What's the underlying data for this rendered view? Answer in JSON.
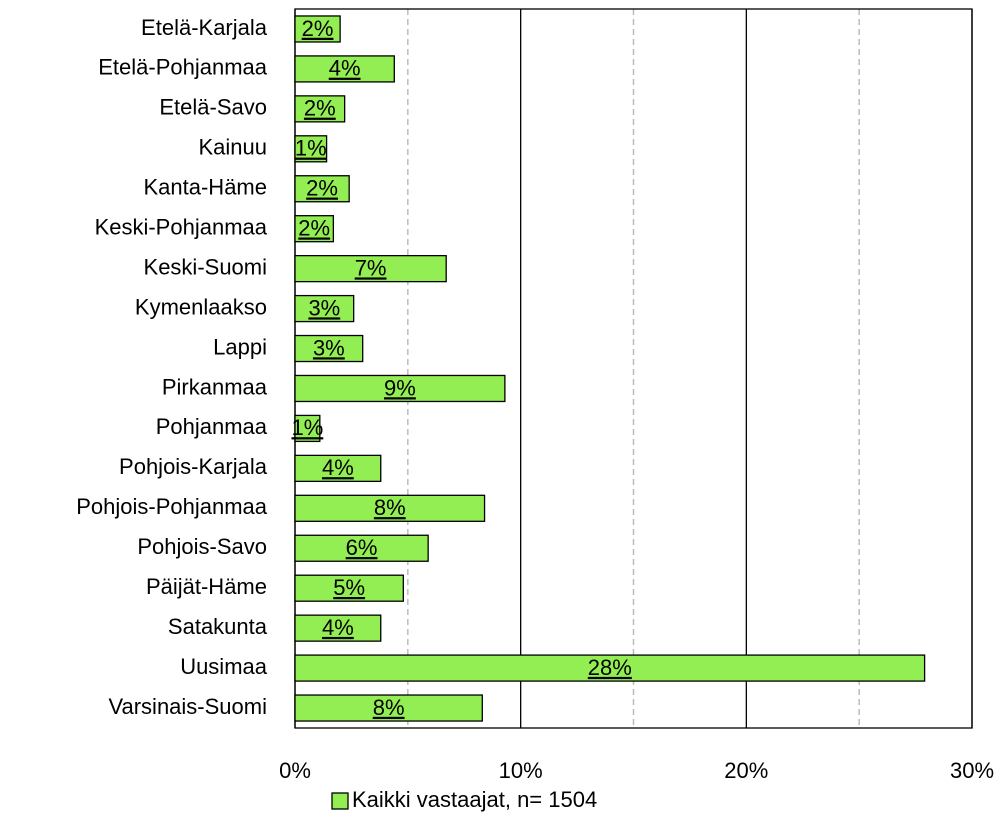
{
  "chart_data": {
    "type": "bar",
    "orientation": "horizontal",
    "categories": [
      "Etelä-Karjala",
      "Etelä-Pohjanmaa",
      "Etelä-Savo",
      "Kainuu",
      "Kanta-Häme",
      "Keski-Pohjanmaa",
      "Keski-Suomi",
      "Kymenlaakso",
      "Lappi",
      "Pirkanmaa",
      "Pohjanmaa",
      "Pohjois-Karjala",
      "Pohjois-Pohjanmaa",
      "Pohjois-Savo",
      "Päijät-Häme",
      "Satakunta",
      "Uusimaa",
      "Varsinais-Suomi"
    ],
    "series": [
      {
        "name": "Kaikki vastaajat, n= 1504",
        "color": "#92ee52",
        "values": [
          2.0,
          4.4,
          2.2,
          1.4,
          2.4,
          1.7,
          6.7,
          2.6,
          3.0,
          9.3,
          1.1,
          3.8,
          8.4,
          5.9,
          4.8,
          3.8,
          27.9,
          8.3
        ],
        "value_labels": [
          "2%",
          "4%",
          "2%",
          "1%",
          "2%",
          "2%",
          "7%",
          "3%",
          "3%",
          "9%",
          "1%",
          "4%",
          "8%",
          "6%",
          "5%",
          "4%",
          "28%",
          "8%"
        ]
      }
    ],
    "xlim": [
      0,
      30
    ],
    "xticks": [
      {
        "value": 0,
        "label": "0%"
      },
      {
        "value": 10,
        "label": "10%"
      },
      {
        "value": 20,
        "label": "20%"
      },
      {
        "value": 30,
        "label": "30%"
      }
    ],
    "xminor": [
      5,
      15,
      25
    ],
    "grid": true,
    "legend": "bottom"
  }
}
